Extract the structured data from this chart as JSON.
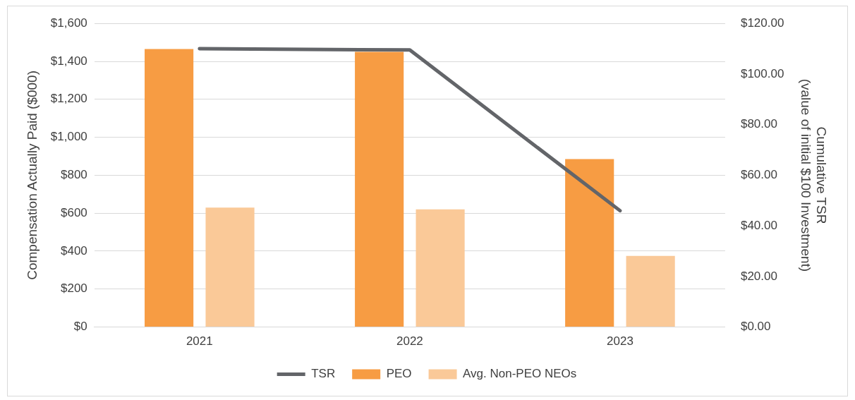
{
  "chart_data": {
    "type": "bar",
    "categories": [
      "2021",
      "2022",
      "2023"
    ],
    "ylabel": "Compensation Actually Paid ($000)",
    "y2label": "Cumulative TSR\n(value of initial $100 Investment)",
    "series": [
      {
        "name": "PEO",
        "color": "#f79c43",
        "values": [
          1465,
          1450,
          885
        ]
      },
      {
        "name": "Avg. Non-PEO NEOs",
        "color": "#fac998",
        "values": [
          630,
          620,
          375
        ]
      },
      {
        "name": "TSR",
        "type": "line",
        "axis": "y2",
        "color": "#636569",
        "values": [
          110,
          109.5,
          46
        ]
      }
    ],
    "ylim": [
      0,
      1600
    ],
    "yticks": [
      {
        "value": 0,
        "label": "$0"
      },
      {
        "value": 200,
        "label": "$200"
      },
      {
        "value": 400,
        "label": "$400"
      },
      {
        "value": 600,
        "label": "$600"
      },
      {
        "value": 800,
        "label": "$800"
      },
      {
        "value": 1000,
        "label": "$1,000"
      },
      {
        "value": 1200,
        "label": "$1,200"
      },
      {
        "value": 1400,
        "label": "$1,400"
      },
      {
        "value": 1600,
        "label": "$1,600"
      }
    ],
    "y2lim": [
      0,
      120
    ],
    "y2ticks": [
      {
        "value": 0,
        "label": "$0.00"
      },
      {
        "value": 20,
        "label": "$20.00"
      },
      {
        "value": 40,
        "label": "$40.00"
      },
      {
        "value": 60,
        "label": "$60.00"
      },
      {
        "value": 80,
        "label": "$80.00"
      },
      {
        "value": 100,
        "label": "$100.00"
      },
      {
        "value": 120,
        "label": "$120.00"
      }
    ],
    "grid": "y",
    "legend": "bottom",
    "marker": "none"
  }
}
